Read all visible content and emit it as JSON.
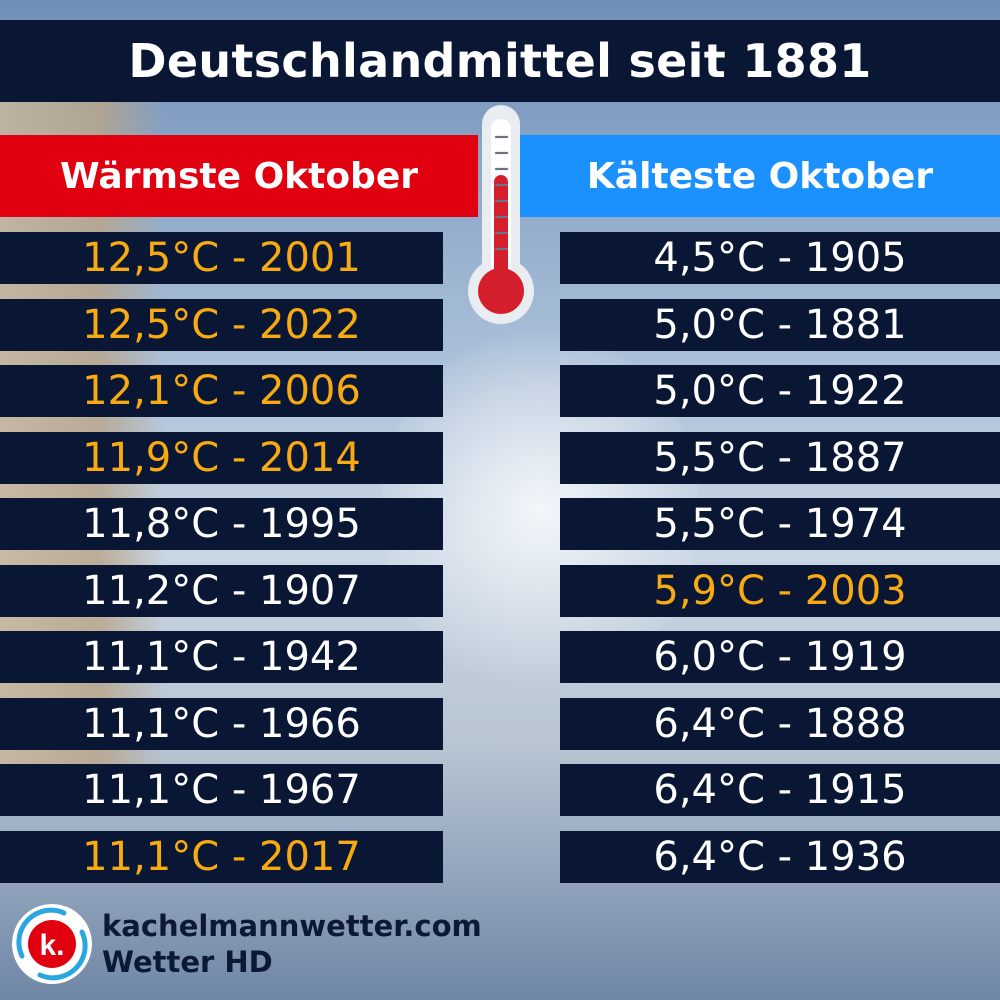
{
  "title": "Deutschlandmittel seit 1881",
  "warm": {
    "heading": "Wärmste Oktober",
    "rows": [
      {
        "text": "12,5°C - 2001",
        "highlight": true
      },
      {
        "text": "12,5°C - 2022",
        "highlight": true
      },
      {
        "text": "12,1°C - 2006",
        "highlight": true
      },
      {
        "text": "11,9°C - 2014",
        "highlight": true
      },
      {
        "text": "11,8°C - 1995",
        "highlight": false
      },
      {
        "text": "11,2°C - 1907",
        "highlight": false
      },
      {
        "text": "11,1°C - 1942",
        "highlight": false
      },
      {
        "text": "11,1°C - 1966",
        "highlight": false
      },
      {
        "text": "11,1°C - 1967",
        "highlight": false
      },
      {
        "text": "11,1°C - 2017",
        "highlight": true
      }
    ]
  },
  "cold": {
    "heading": "Kälteste Oktober",
    "rows": [
      {
        "text": "4,5°C - 1905",
        "highlight": false
      },
      {
        "text": "5,0°C - 1881",
        "highlight": false
      },
      {
        "text": "5,0°C - 1922",
        "highlight": false
      },
      {
        "text": "5,5°C - 1887",
        "highlight": false
      },
      {
        "text": "5,5°C - 1974",
        "highlight": false
      },
      {
        "text": "5,9°C - 2003",
        "highlight": true
      },
      {
        "text": "6,0°C - 1919",
        "highlight": false
      },
      {
        "text": "6,4°C - 1888",
        "highlight": false
      },
      {
        "text": "6,4°C - 1915",
        "highlight": false
      },
      {
        "text": "6,4°C - 1936",
        "highlight": false
      }
    ]
  },
  "footer": {
    "site": "kachelmannwetter.com",
    "brand": "Wetter HD",
    "logo_letter": "k."
  },
  "colors": {
    "navy": "#091634",
    "warm_header": "#e0000f",
    "cold_header": "#1b90ff",
    "highlight": "#f8aa12",
    "text": "#ffffff"
  },
  "icons": [
    "thermometer-icon",
    "kachelmann-logo-icon"
  ]
}
